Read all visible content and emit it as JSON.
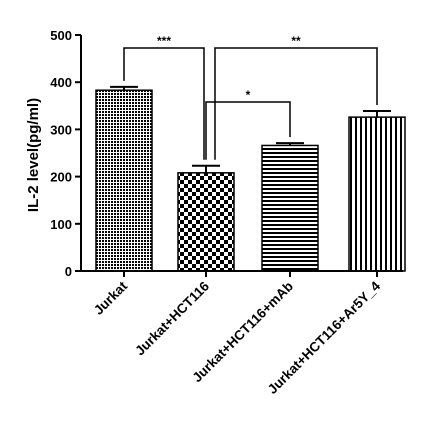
{
  "chart_data": {
    "type": "bar",
    "title": "",
    "xlabel": "",
    "ylabel": "IL-2 level(pg/ml)",
    "ylim": [
      0,
      500
    ],
    "yticks": [
      0,
      100,
      200,
      300,
      400,
      500
    ],
    "grid": false,
    "categories": [
      "Jurkat",
      "Jurkat+HCT116",
      "Jurkat+HCT116+mAb",
      "Jurkat+HCT116+Ar5Y_4"
    ],
    "values": [
      383,
      208,
      266,
      326
    ],
    "errors": [
      7,
      15,
      5,
      13
    ],
    "patterns": [
      "dense-dots",
      "checkerboard",
      "horizontal-lines",
      "vertical-lines"
    ],
    "significance": [
      {
        "from": 0,
        "to": 1,
        "label": "***"
      },
      {
        "from": 1,
        "to": 2,
        "label": "*"
      },
      {
        "from": 1,
        "to": 3,
        "label": "**"
      }
    ]
  }
}
